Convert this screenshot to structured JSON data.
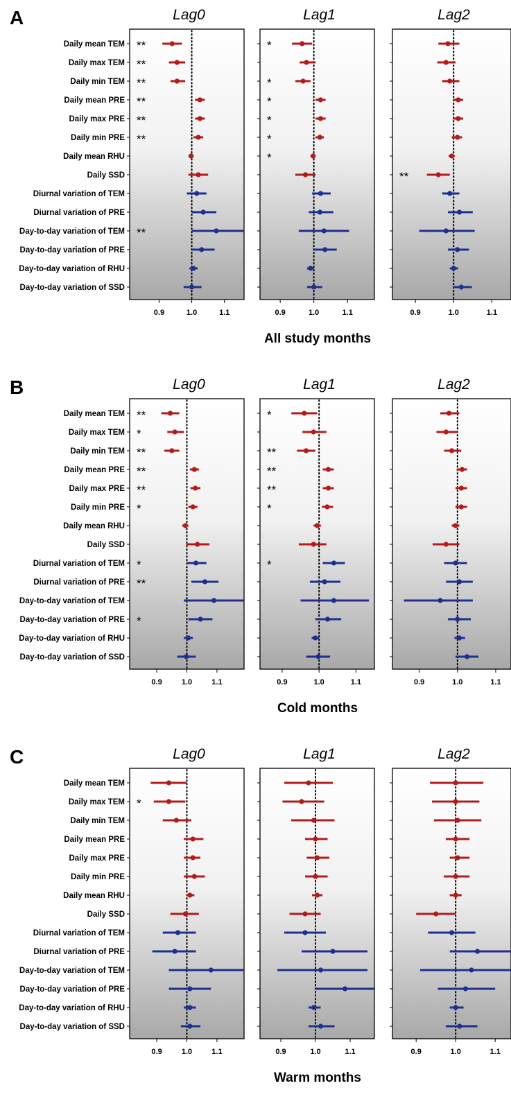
{
  "colors": {
    "temp_humid": "#b31b1b",
    "variation": "#1f2f8f",
    "axis": "#000000"
  },
  "lags": [
    "Lag0",
    "Lag1",
    "Lag2"
  ],
  "row_labels": [
    "Daily mean TEM",
    "Daily max TEM",
    "Daily min TEM",
    "Daily mean PRE",
    "Daily max PRE",
    "Daily min PRE",
    "Daily mean RHU",
    "Daily SSD",
    "Diurnal variation of TEM",
    "Diurnal variation of PRE",
    "Day-to-day variation of TEM",
    "Day-to-day variation of PRE",
    "Day-to-day variation of RHU",
    "Day-to-day variation of SSD"
  ],
  "tick_labels": [
    "0.9",
    "1.0",
    "1.1"
  ],
  "chart_data": [
    {
      "type": "forest",
      "letter": "A",
      "xlabel": "All study months",
      "x_ticks": [
        0.9,
        1.0,
        1.1
      ],
      "reference_line": 1.0,
      "panels": [
        {
          "title": "Lag0",
          "xlim": [
            0.81,
            1.16
          ],
          "points": [
            [
              0.94,
              0.91,
              0.97
            ],
            [
              0.955,
              0.93,
              0.98
            ],
            [
              0.955,
              0.935,
              0.98
            ],
            [
              1.025,
              1.01,
              1.04
            ],
            [
              1.025,
              1.01,
              1.04
            ],
            [
              1.02,
              1.005,
              1.035
            ],
            [
              0.998,
              0.99,
              1.006
            ],
            [
              1.02,
              0.99,
              1.05
            ],
            [
              1.015,
              0.985,
              1.045
            ],
            [
              1.035,
              1.0,
              1.075
            ],
            [
              1.075,
              1.0,
              1.16
            ],
            [
              1.03,
              1.0,
              1.07
            ],
            [
              1.005,
              0.993,
              1.018
            ],
            [
              1.0,
              0.975,
              1.03
            ]
          ],
          "sig": [
            "**",
            "**",
            "**",
            "**",
            "**",
            "**",
            "",
            "",
            "",
            "",
            "**",
            "",
            "",
            ""
          ]
        },
        {
          "title": "Lag1",
          "xlim": [
            0.84,
            1.18
          ],
          "points": [
            [
              0.965,
              0.935,
              0.995
            ],
            [
              0.978,
              0.958,
              1.005
            ],
            [
              0.968,
              0.945,
              0.99
            ],
            [
              1.02,
              1.005,
              1.035
            ],
            [
              1.02,
              1.005,
              1.035
            ],
            [
              1.018,
              1.005,
              1.03
            ],
            [
              0.998,
              0.99,
              1.005
            ],
            [
              0.975,
              0.945,
              1.005
            ],
            [
              1.02,
              0.995,
              1.05
            ],
            [
              1.018,
              0.985,
              1.058
            ],
            [
              1.03,
              0.955,
              1.105
            ],
            [
              1.033,
              1.0,
              1.068
            ],
            [
              0.99,
              0.98,
              1.0
            ],
            [
              1.0,
              0.98,
              1.025
            ]
          ],
          "sig": [
            "*",
            "",
            "*",
            "*",
            "*",
            "*",
            "*",
            "",
            "",
            "",
            "",
            "",
            "",
            ""
          ]
        },
        {
          "title": "Lag2",
          "xlim": [
            0.84,
            1.15
          ],
          "points": [
            [
              0.985,
              0.96,
              1.015
            ],
            [
              0.98,
              0.957,
              1.005
            ],
            [
              0.99,
              0.97,
              1.015
            ],
            [
              1.012,
              0.998,
              1.025
            ],
            [
              1.012,
              0.998,
              1.025
            ],
            [
              1.01,
              0.995,
              1.022
            ],
            [
              0.995,
              0.987,
              1.003
            ],
            [
              0.96,
              0.93,
              0.99
            ],
            [
              0.99,
              0.97,
              1.015
            ],
            [
              1.015,
              0.985,
              1.05
            ],
            [
              0.98,
              0.91,
              1.055
            ],
            [
              1.01,
              0.985,
              1.04
            ],
            [
              1.0,
              0.99,
              1.012
            ],
            [
              1.02,
              1.0,
              1.048
            ]
          ],
          "sig": [
            "",
            "",
            "",
            "",
            "",
            "",
            "",
            "**",
            "",
            "",
            "",
            "",
            "",
            ""
          ]
        }
      ]
    },
    {
      "type": "forest",
      "letter": "B",
      "xlabel": "Cold months",
      "x_ticks": [
        0.9,
        1.0,
        1.1
      ],
      "reference_line": 1.0,
      "panels": [
        {
          "title": "Lag0",
          "xlim": [
            0.81,
            1.19
          ],
          "points": [
            [
              0.945,
              0.915,
              0.975
            ],
            [
              0.96,
              0.935,
              0.99
            ],
            [
              0.95,
              0.925,
              0.975
            ],
            [
              1.025,
              1.01,
              1.04
            ],
            [
              1.028,
              1.012,
              1.045
            ],
            [
              1.02,
              1.005,
              1.035
            ],
            [
              0.995,
              0.985,
              1.005
            ],
            [
              1.035,
              0.998,
              1.075
            ],
            [
              1.03,
              1.0,
              1.065
            ],
            [
              1.06,
              1.015,
              1.105
            ],
            [
              1.09,
              0.99,
              1.19
            ],
            [
              1.045,
              1.005,
              1.085
            ],
            [
              1.005,
              0.99,
              1.02
            ],
            [
              0.998,
              0.968,
              1.03
            ]
          ],
          "sig": [
            "**",
            "*",
            "**",
            "**",
            "**",
            "*",
            "",
            "",
            "*",
            "**",
            "",
            "*",
            "",
            ""
          ]
        },
        {
          "title": "Lag1",
          "xlim": [
            0.84,
            1.15
          ],
          "points": [
            [
              0.96,
              0.925,
              0.995
            ],
            [
              0.985,
              0.955,
              1.02
            ],
            [
              0.965,
              0.94,
              0.99
            ],
            [
              1.025,
              1.01,
              1.04
            ],
            [
              1.025,
              1.01,
              1.04
            ],
            [
              1.022,
              1.008,
              1.038
            ],
            [
              0.995,
              0.985,
              1.005
            ],
            [
              0.985,
              0.945,
              1.02
            ],
            [
              1.04,
              1.01,
              1.07
            ],
            [
              1.015,
              0.975,
              1.058
            ],
            [
              1.04,
              0.95,
              1.135
            ],
            [
              1.023,
              0.99,
              1.06
            ],
            [
              0.99,
              0.98,
              1.0
            ],
            [
              0.998,
              0.965,
              1.03
            ]
          ],
          "sig": [
            "*",
            "",
            "**",
            "**",
            "**",
            "*",
            "",
            "",
            "*",
            "",
            "",
            "",
            "",
            ""
          ]
        },
        {
          "title": "Lag2",
          "xlim": [
            0.83,
            1.14
          ],
          "points": [
            [
              0.978,
              0.955,
              1.005
            ],
            [
              0.97,
              0.945,
              1.0
            ],
            [
              0.985,
              0.965,
              1.01
            ],
            [
              1.012,
              0.998,
              1.025
            ],
            [
              1.01,
              0.995,
              1.025
            ],
            [
              1.01,
              0.995,
              1.025
            ],
            [
              0.995,
              0.985,
              1.005
            ],
            [
              0.97,
              0.935,
              1.005
            ],
            [
              0.995,
              0.965,
              1.025
            ],
            [
              1.005,
              0.97,
              1.04
            ],
            [
              0.955,
              0.86,
              1.04
            ],
            [
              1.0,
              0.975,
              1.035
            ],
            [
              1.005,
              0.992,
              1.02
            ],
            [
              1.025,
              0.995,
              1.055
            ]
          ],
          "sig": [
            "",
            "",
            "",
            "",
            "",
            "",
            "",
            "",
            "",
            "",
            "",
            "",
            "",
            ""
          ]
        }
      ]
    },
    {
      "type": "forest",
      "letter": "C",
      "xlabel": "Warm months",
      "x_ticks": [
        0.9,
        1.0,
        1.1
      ],
      "reference_line": 1.0,
      "panels": [
        {
          "title": "Lag0",
          "xlim": [
            0.81,
            1.19
          ],
          "points": [
            [
              0.94,
              0.88,
              1.0
            ],
            [
              0.94,
              0.89,
              0.995
            ],
            [
              0.965,
              0.92,
              1.015
            ],
            [
              1.02,
              0.99,
              1.055
            ],
            [
              1.02,
              0.99,
              1.045
            ],
            [
              1.025,
              0.99,
              1.06
            ],
            [
              1.01,
              0.998,
              1.025
            ],
            [
              0.995,
              0.945,
              1.04
            ],
            [
              0.97,
              0.92,
              1.03
            ],
            [
              0.96,
              0.885,
              1.03
            ],
            [
              1.08,
              0.94,
              1.19
            ],
            [
              1.01,
              0.94,
              1.08
            ],
            [
              1.01,
              0.99,
              1.03
            ],
            [
              1.01,
              0.98,
              1.045
            ]
          ],
          "sig": [
            "",
            "*",
            "",
            "",
            "",
            "",
            "",
            "",
            "",
            "",
            "",
            "",
            "",
            ""
          ]
        },
        {
          "title": "Lag1",
          "xlim": [
            0.84,
            1.17
          ],
          "points": [
            [
              0.98,
              0.91,
              1.05
            ],
            [
              0.96,
              0.905,
              1.025
            ],
            [
              0.995,
              0.93,
              1.055
            ],
            [
              1.0,
              0.97,
              1.035
            ],
            [
              1.005,
              0.975,
              1.04
            ],
            [
              1.0,
              0.97,
              1.035
            ],
            [
              1.005,
              0.99,
              1.02
            ],
            [
              0.97,
              0.925,
              1.015
            ],
            [
              0.97,
              0.91,
              1.03
            ],
            [
              1.05,
              0.96,
              1.15
            ],
            [
              1.015,
              0.89,
              1.15
            ],
            [
              1.085,
              1.0,
              1.17
            ],
            [
              0.995,
              0.98,
              1.015
            ],
            [
              1.015,
              0.98,
              1.055
            ]
          ],
          "sig": [
            "",
            "",
            "",
            "",
            "",
            "",
            "",
            "",
            "",
            "",
            "",
            "",
            "",
            ""
          ]
        },
        {
          "title": "Lag2",
          "xlim": [
            0.84,
            1.14
          ],
          "points": [
            [
              1.0,
              0.935,
              1.07
            ],
            [
              1.0,
              0.94,
              1.06
            ],
            [
              1.005,
              0.945,
              1.065
            ],
            [
              1.0,
              0.975,
              1.035
            ],
            [
              1.005,
              0.985,
              1.035
            ],
            [
              1.0,
              0.97,
              1.035
            ],
            [
              1.0,
              0.985,
              1.015
            ],
            [
              0.95,
              0.9,
              1.0
            ],
            [
              0.99,
              0.93,
              1.05
            ],
            [
              1.055,
              0.985,
              1.14
            ],
            [
              1.04,
              0.91,
              1.14
            ],
            [
              1.025,
              0.955,
              1.1
            ],
            [
              1.0,
              0.985,
              1.02
            ],
            [
              1.01,
              0.975,
              1.055
            ]
          ],
          "sig": [
            "",
            "",
            "",
            "",
            "",
            "",
            "",
            "",
            "",
            "",
            "",
            "",
            "",
            ""
          ]
        }
      ]
    }
  ]
}
